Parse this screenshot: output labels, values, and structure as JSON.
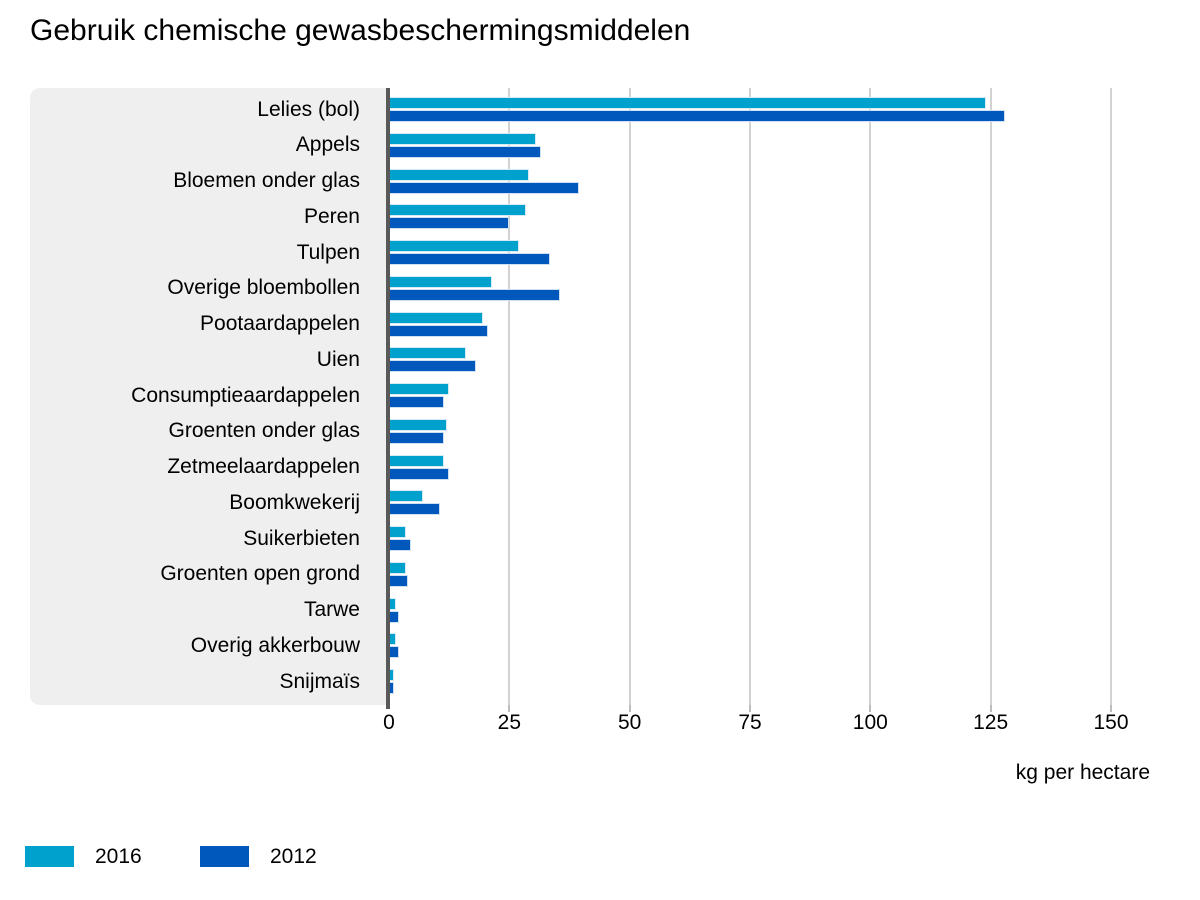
{
  "title": "Gebruik chemische gewasbeschermingsmiddelen",
  "colors": {
    "series_2016": "#00a1cd",
    "series_2012": "#0058bd",
    "panel_background": "#efefef",
    "plot_background": "#ffffff",
    "axis_line": "#595959",
    "gridline": "#d2d2d2",
    "text": "#000000",
    "logo": "#9c9c9c"
  },
  "chart_data": {
    "type": "bar",
    "orientation": "horizontal",
    "title": "Gebruik chemische gewasbeschermingsmiddelen",
    "xlabel": "kg per hectare",
    "ylabel": "",
    "xlim": [
      0,
      150
    ],
    "xticks": [
      0,
      25,
      50,
      75,
      100,
      125,
      150
    ],
    "grid": true,
    "legend_position": "bottom-left",
    "categories": [
      "Lelies (bol)",
      "Appels",
      "Bloemen onder glas",
      "Peren",
      "Tulpen",
      "Overige bloembollen",
      "Pootaardappelen",
      "Uien",
      "Consumptieaardappelen",
      "Groenten onder glas",
      "Zetmeelaardappelen",
      "Boomkwekerij",
      "Suikerbieten",
      "Groenten open grond",
      "Tarwe",
      "Overig akkerbouw",
      "Snijmaïs"
    ],
    "series": [
      {
        "name": "2016",
        "color": "#00a1cd",
        "values": [
          124,
          30.5,
          29,
          28.5,
          27,
          21.5,
          19.5,
          16,
          12.5,
          12,
          11.5,
          7,
          3.5,
          3.5,
          1.5,
          1.5,
          1
        ]
      },
      {
        "name": "2012",
        "color": "#0058bd",
        "values": [
          128,
          31.5,
          39.5,
          25,
          33.5,
          35.5,
          20.5,
          18,
          11.5,
          11.5,
          12.5,
          10.5,
          4.5,
          4,
          2,
          2,
          1
        ]
      }
    ]
  },
  "axis": {
    "unit_label": "kg per hectare"
  },
  "legend": {
    "items": [
      {
        "label": "2016",
        "color": "#00a1cd"
      },
      {
        "label": "2012",
        "color": "#0058bd"
      }
    ]
  },
  "branding": {
    "logo_name": "cbs-logo"
  }
}
